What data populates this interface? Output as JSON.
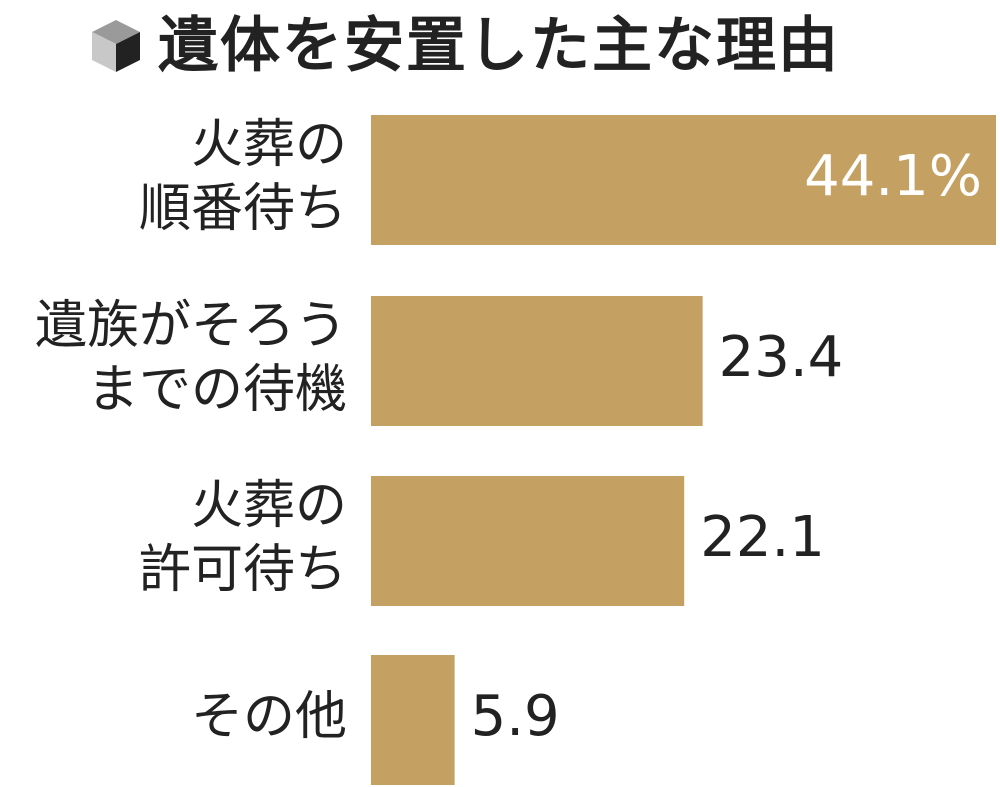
{
  "title": "遺体を安置した主な理由",
  "icon": "cube-icon",
  "colors": {
    "bar": "#C4A062",
    "text": "#222222",
    "inside_label": "#FFFFFF"
  },
  "chart_data": {
    "type": "bar",
    "orientation": "horizontal",
    "title": "遺体を安置した主な理由",
    "categories": [
      [
        "火葬の",
        "順番待ち"
      ],
      [
        "遺族がそろう",
        "までの待機"
      ],
      [
        "火葬の",
        "許可待ち"
      ],
      [
        "その他"
      ]
    ],
    "values": [
      44.1,
      23.4,
      22.1,
      5.9
    ],
    "value_labels": [
      "44.1%",
      "23.4",
      "22.1",
      "5.9"
    ],
    "unit": "%",
    "xlim": [
      0,
      44.1
    ],
    "grid": false,
    "legend": "none"
  }
}
